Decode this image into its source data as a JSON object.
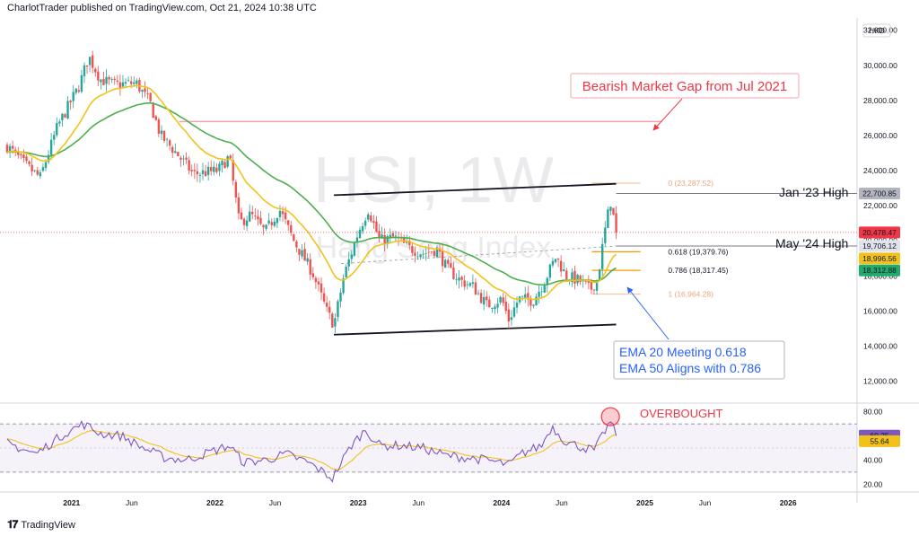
{
  "header": {
    "text": "CharlotTrader published on TradingView.com, Oct 21, 2024 10:38 UTC"
  },
  "footer": {
    "brand": "TradingView"
  },
  "colors": {
    "up": "#26a69a",
    "down": "#ef5350",
    "ema20": "#f2c21b",
    "ema50": "#4caf50",
    "fib_618": "#ff9800",
    "fib_786": "#ff9800",
    "fib_0": "#f7c6a0",
    "fib_1": "#f7c6a0",
    "gap": "#f5a3a8",
    "rsi": "#7e57c2",
    "rsi_ma": "#f2c21b",
    "annot_red": "#f23645",
    "annot_blue": "#2962ff"
  },
  "chart_data": {
    "type": "candlestick",
    "watermark_symbol": "HSI, 1W",
    "watermark_name": "Hang Seng Index",
    "currency": "HKD",
    "y_ticks": [
      "32,000.00",
      "30,000.00",
      "28,000.00",
      "26,000.00",
      "24,000.00",
      "22,000.00",
      "20,000.00",
      "18,000.00",
      "16,000.00",
      "14,000.00",
      "12,000.00"
    ],
    "y_tick_values": [
      32000,
      30000,
      28000,
      26000,
      24000,
      22000,
      20000,
      18000,
      16000,
      14000,
      12000
    ],
    "ylim": [
      10800,
      32600
    ],
    "x_ticks": [
      {
        "label": "2021",
        "t": 2021.0,
        "bold": true
      },
      {
        "label": "Jun",
        "t": 2021.42,
        "bold": false
      },
      {
        "label": "2022",
        "t": 2022.0,
        "bold": true
      },
      {
        "label": "Jun",
        "t": 2022.42,
        "bold": false
      },
      {
        "label": "2023",
        "t": 2023.0,
        "bold": true
      },
      {
        "label": "Jun",
        "t": 2023.42,
        "bold": false
      },
      {
        "label": "2024",
        "t": 2024.0,
        "bold": true
      },
      {
        "label": "Jun",
        "t": 2024.42,
        "bold": false
      },
      {
        "label": "2025",
        "t": 2025.0,
        "bold": true
      },
      {
        "label": "Jun",
        "t": 2025.42,
        "bold": false
      },
      {
        "label": "2026",
        "t": 2026.0,
        "bold": true
      }
    ],
    "xlim": [
      2020.55,
      2026.45
    ],
    "price_anchors": [
      [
        2020.55,
        25400
      ],
      [
        2020.68,
        24300
      ],
      [
        2020.78,
        23600
      ],
      [
        2020.9,
        26500
      ],
      [
        2021.05,
        28800
      ],
      [
        2021.12,
        30500
      ],
      [
        2021.2,
        29200
      ],
      [
        2021.3,
        28900
      ],
      [
        2021.45,
        29000
      ],
      [
        2021.55,
        27800
      ],
      [
        2021.62,
        26000
      ],
      [
        2021.72,
        25100
      ],
      [
        2021.85,
        23800
      ],
      [
        2022.02,
        24000
      ],
      [
        2022.1,
        24800
      ],
      [
        2022.17,
        21000
      ],
      [
        2022.25,
        21500
      ],
      [
        2022.35,
        20500
      ],
      [
        2022.45,
        21800
      ],
      [
        2022.55,
        20000
      ],
      [
        2022.68,
        18200
      ],
      [
        2022.78,
        16000
      ],
      [
        2022.83,
        15200
      ],
      [
        2022.9,
        18000
      ],
      [
        2023.0,
        20500
      ],
      [
        2023.07,
        21800
      ],
      [
        2023.15,
        20000
      ],
      [
        2023.25,
        20200
      ],
      [
        2023.35,
        19600
      ],
      [
        2023.45,
        19300
      ],
      [
        2023.55,
        19500
      ],
      [
        2023.62,
        18400
      ],
      [
        2023.72,
        17700
      ],
      [
        2023.8,
        17400
      ],
      [
        2023.9,
        16300
      ],
      [
        2024.0,
        16700
      ],
      [
        2024.05,
        15500
      ],
      [
        2024.12,
        16700
      ],
      [
        2024.22,
        16600
      ],
      [
        2024.3,
        17700
      ],
      [
        2024.38,
        19100
      ],
      [
        2024.45,
        18000
      ],
      [
        2024.55,
        17700
      ],
      [
        2024.62,
        17200
      ],
      [
        2024.67,
        17800
      ],
      [
        2024.72,
        20500
      ],
      [
        2024.76,
        22300
      ],
      [
        2024.8,
        20478
      ]
    ],
    "rsi_anchors": [
      [
        2020.55,
        54
      ],
      [
        2020.75,
        45
      ],
      [
        2020.95,
        62
      ],
      [
        2021.08,
        70
      ],
      [
        2021.2,
        62
      ],
      [
        2021.35,
        60
      ],
      [
        2021.5,
        50
      ],
      [
        2021.65,
        42
      ],
      [
        2021.8,
        40
      ],
      [
        2022.0,
        48
      ],
      [
        2022.1,
        52
      ],
      [
        2022.2,
        38
      ],
      [
        2022.35,
        40
      ],
      [
        2022.5,
        45
      ],
      [
        2022.65,
        38
      ],
      [
        2022.78,
        28
      ],
      [
        2022.82,
        25
      ],
      [
        2022.95,
        52
      ],
      [
        2023.05,
        65
      ],
      [
        2023.15,
        52
      ],
      [
        2023.3,
        52
      ],
      [
        2023.45,
        50
      ],
      [
        2023.6,
        44
      ],
      [
        2023.75,
        42
      ],
      [
        2023.9,
        40
      ],
      [
        2024.05,
        36
      ],
      [
        2024.15,
        46
      ],
      [
        2024.28,
        52
      ],
      [
        2024.35,
        68
      ],
      [
        2024.45,
        55
      ],
      [
        2024.58,
        50
      ],
      [
        2024.65,
        48
      ],
      [
        2024.72,
        64
      ],
      [
        2024.76,
        72
      ],
      [
        2024.8,
        60.25
      ]
    ],
    "rsi_ticks": [
      "80.00",
      "60.00",
      "40.00",
      "20.00"
    ],
    "rsi_tick_values": [
      80,
      60,
      40,
      20
    ],
    "rsi_ylim": [
      15,
      85
    ],
    "rsi_band": [
      70,
      30
    ],
    "rsi_mid": 50,
    "price_badges": [
      {
        "text": "22,700.85",
        "value": 22700.85,
        "bg": "#b2b5be",
        "fg": "#131722"
      },
      {
        "text": "20,478.47",
        "value": 20478.47,
        "bg": "#f23645",
        "fg": "#ffffff"
      },
      {
        "text": "19,706.12",
        "value": 19706.12,
        "bg": "#e0e3eb",
        "fg": "#131722"
      },
      {
        "text": "18,996.56",
        "value": 18996.56,
        "bg": "#f2c21b",
        "fg": "#131722"
      },
      {
        "text": "18,312.88",
        "value": 18312.88,
        "bg": "#22ab6c",
        "fg": "#ffffff"
      }
    ],
    "rsi_badges": [
      {
        "text": "60.25",
        "value": 60.25,
        "bg": "#7e57c2",
        "fg": "#ffffff"
      },
      {
        "text": "55.64",
        "value": 55.64,
        "bg": "#f2c21b",
        "fg": "#131722"
      }
    ],
    "fib_levels": [
      {
        "label": "0 (23,287.52)",
        "value": 23287.52,
        "color": "#f7c6a0"
      },
      {
        "label": "0.618 (19,379.76)",
        "value": 19379.76,
        "color": "#ff9800"
      },
      {
        "label": "0.786 (18,317.45)",
        "value": 18317.45,
        "color": "#ff9800"
      },
      {
        "label": "1 (16,964.28)",
        "value": 16964.28,
        "color": "#f7c6a0"
      }
    ],
    "fib_t_range": [
      2024.63,
      2024.97
    ],
    "channel_upper": [
      [
        2022.83,
        22600
      ],
      [
        2024.8,
        23250
      ]
    ],
    "channel_lower": [
      [
        2022.83,
        14650
      ],
      [
        2024.8,
        15230
      ]
    ],
    "gap_line": {
      "value": 26800,
      "t": [
        2021.75,
        2025.12
      ]
    },
    "horizontal_lines": [
      {
        "value": 22700.85,
        "t_start": 2024.8,
        "color": "#787b86"
      },
      {
        "value": 19706.12,
        "t_start": 2024.8,
        "color": "#787b86"
      }
    ],
    "annotations": {
      "gap_label": "Bearish Market Gap from Jul 2021",
      "jan23": "Jan '23 High",
      "may24": "May '24 High",
      "ema_note_1": "EMA 20 Meeting 0.618",
      "ema_note_2": "EMA 50 Aligns with 0.786",
      "overbought": "OVERBOUGHT"
    }
  }
}
